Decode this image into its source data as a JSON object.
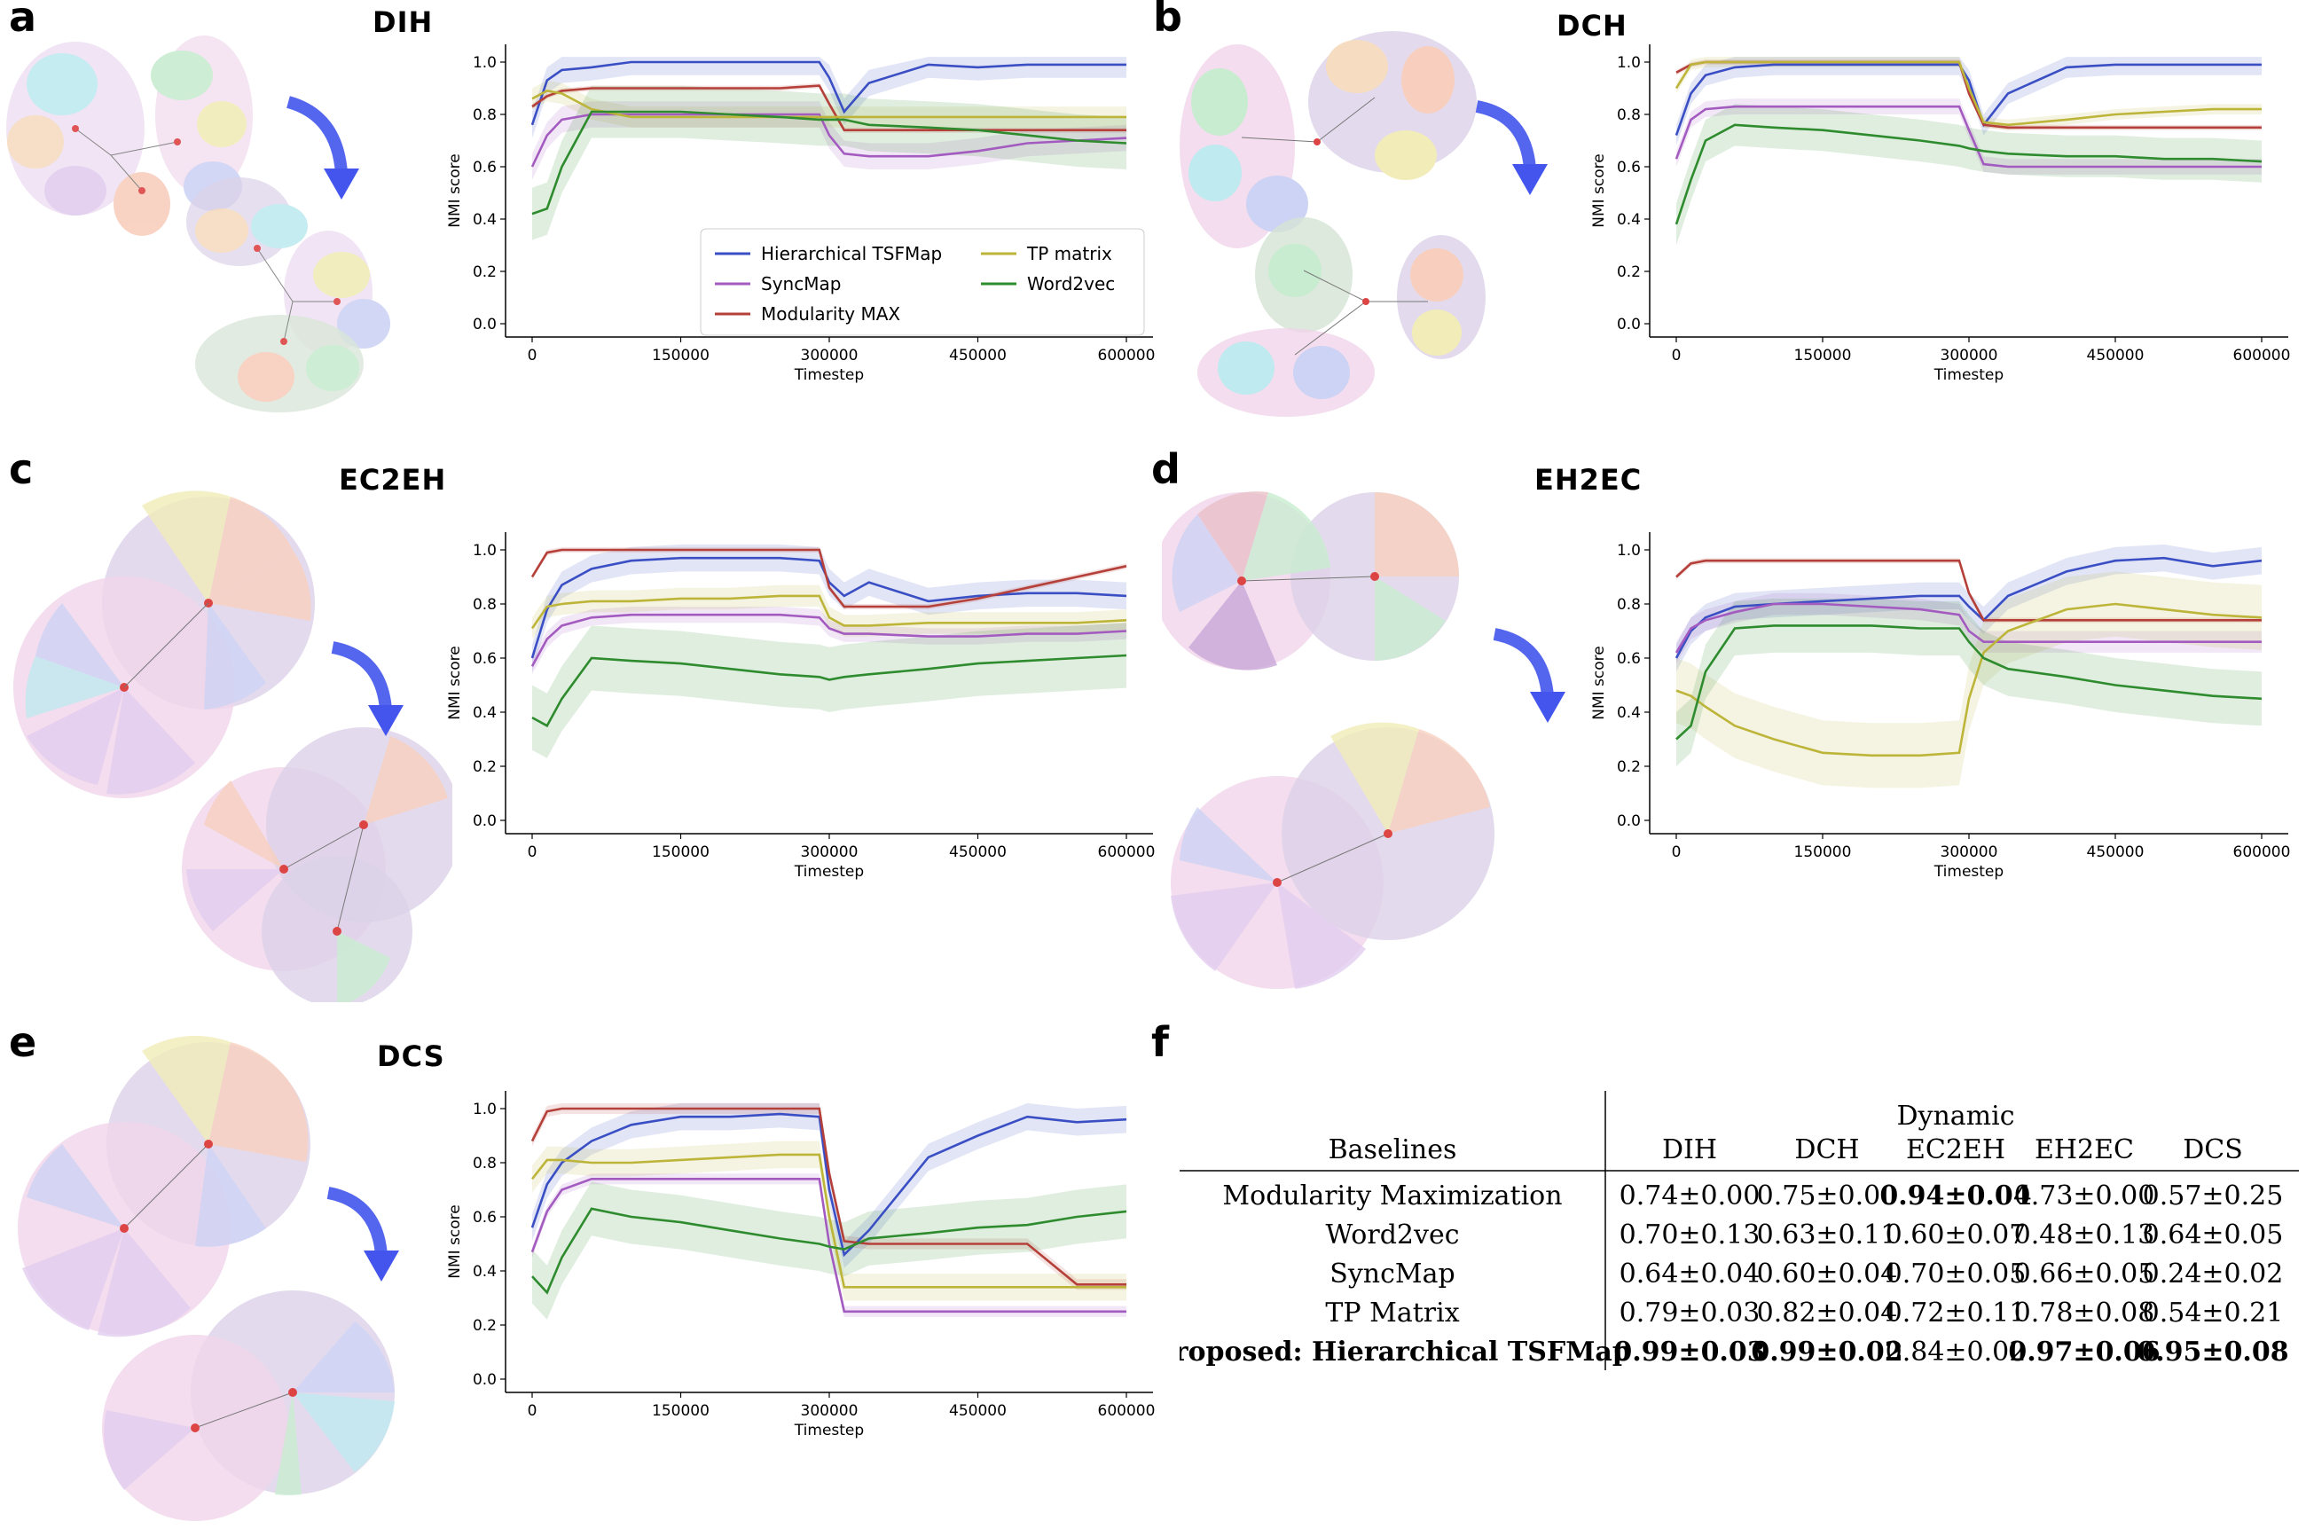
{
  "panels": [
    {
      "letter": "a",
      "title": "DIH",
      "ticks": [
        "0",
        "150000",
        "300000",
        "450000",
        "600000"
      ],
      "yticks": [
        "0.0",
        "0.2",
        "0.4",
        "0.6",
        "0.8",
        "1.0"
      ],
      "xlabel": "Timestep",
      "ylabel": "NMI score"
    },
    {
      "letter": "b",
      "title": "DCH",
      "ticks": [
        "0",
        "150000",
        "300000",
        "450000",
        "600000"
      ],
      "yticks": [
        "0.0",
        "0.2",
        "0.4",
        "0.6",
        "0.8",
        "1.0"
      ],
      "xlabel": "Timestep",
      "ylabel": "NMI score"
    },
    {
      "letter": "c",
      "title": "EC2EH",
      "ticks": [
        "0",
        "150000",
        "300000",
        "450000",
        "600000"
      ],
      "yticks": [
        "0.0",
        "0.2",
        "0.4",
        "0.6",
        "0.8",
        "1.0"
      ],
      "xlabel": "Timestep",
      "ylabel": "NMI score"
    },
    {
      "letter": "d",
      "title": "EH2EC",
      "ticks": [
        "0",
        "150000",
        "300000",
        "450000",
        "600000"
      ],
      "yticks": [
        "0.0",
        "0.2",
        "0.4",
        "0.6",
        "0.8",
        "1.0"
      ],
      "xlabel": "Timestep",
      "ylabel": "NMI score"
    },
    {
      "letter": "e",
      "title": "DCS",
      "ticks": [
        "0",
        "150000",
        "300000",
        "450000",
        "600000"
      ],
      "yticks": [
        "0.0",
        "0.2",
        "0.4",
        "0.6",
        "0.8",
        "1.0"
      ],
      "xlabel": "Timestep",
      "ylabel": "NMI score"
    }
  ],
  "legend": [
    {
      "name": "Hierarchical TSFMap",
      "color": "#3b4fc4"
    },
    {
      "name": "SyncMap",
      "color": "#a35bc0"
    },
    {
      "name": "Modularity MAX",
      "color": "#b5403a"
    },
    {
      "name": "TP matrix",
      "color": "#bdb53a"
    },
    {
      "name": "Word2vec",
      "color": "#2e8b2e"
    }
  ],
  "table": {
    "letter": "f",
    "group_header": "Dynamic",
    "row_header": "Baselines",
    "columns": [
      "DIH",
      "DCH",
      "EC2EH",
      "EH2EC",
      "DCS"
    ],
    "rows": [
      {
        "name": "Modularity Maximization",
        "values": [
          "0.74±0.00",
          "0.75±0.00",
          "0.94±0.04",
          "0.73±0.00",
          "0.57±0.25"
        ],
        "bold": [
          false,
          false,
          true,
          false,
          false
        ]
      },
      {
        "name": "Word2vec",
        "values": [
          "0.70±0.13",
          "0.63±0.11",
          "0.60±0.07",
          "0.48±0.13",
          "0.64±0.05"
        ],
        "bold": [
          false,
          false,
          false,
          false,
          false
        ]
      },
      {
        "name": "SyncMap",
        "values": [
          "0.64±0.04",
          "0.60±0.04",
          "0.70±0.05",
          "0.66±0.05",
          "0.24±0.02"
        ],
        "bold": [
          false,
          false,
          false,
          false,
          false
        ]
      },
      {
        "name": "TP Matrix",
        "values": [
          "0.79±0.03",
          "0.82±0.04",
          "0.72±0.11",
          "0.78±0.08",
          "0.54±0.21"
        ],
        "bold": [
          false,
          false,
          false,
          false,
          false
        ]
      },
      {
        "name": "Proposed: Hierarchical TSFMap",
        "values": [
          "0.99±0.03",
          "0.99±0.02",
          "0.84±0.02",
          "0.97±0.06",
          "0.95±0.08"
        ],
        "bold": [
          true,
          true,
          false,
          true,
          true
        ],
        "name_bold": true
      }
    ]
  },
  "chart_data": [
    {
      "type": "line",
      "title": "DIH",
      "xlabel": "Timestep",
      "ylabel": "NMI score",
      "xlim": [
        0,
        600000
      ],
      "ylim": [
        0,
        1.05
      ],
      "x": [
        0,
        15000,
        30000,
        60000,
        100000,
        150000,
        200000,
        250000,
        290000,
        300000,
        315000,
        340000,
        400000,
        450000,
        500000,
        550000,
        600000
      ],
      "series": [
        {
          "name": "Hierarchical TSFMap",
          "values": [
            0.76,
            0.93,
            0.97,
            0.98,
            1.0,
            1.0,
            1.0,
            1.0,
            1.0,
            0.94,
            0.81,
            0.92,
            0.99,
            0.98,
            0.99,
            0.99,
            0.99
          ],
          "band": 0.05
        },
        {
          "name": "SyncMap",
          "values": [
            0.6,
            0.72,
            0.78,
            0.8,
            0.8,
            0.8,
            0.8,
            0.8,
            0.8,
            0.72,
            0.65,
            0.64,
            0.64,
            0.66,
            0.69,
            0.7,
            0.71
          ],
          "band": 0.05
        },
        {
          "name": "Modularity MAX",
          "values": [
            0.83,
            0.87,
            0.89,
            0.9,
            0.9,
            0.9,
            0.9,
            0.9,
            0.91,
            0.84,
            0.74,
            0.74,
            0.74,
            0.74,
            0.74,
            0.74,
            0.74
          ],
          "band": 0.01
        },
        {
          "name": "TP matrix",
          "values": [
            0.86,
            0.89,
            0.88,
            0.82,
            0.79,
            0.79,
            0.79,
            0.79,
            0.79,
            0.79,
            0.79,
            0.79,
            0.79,
            0.79,
            0.79,
            0.79,
            0.79
          ],
          "band": 0.04
        },
        {
          "name": "Word2vec",
          "values": [
            0.42,
            0.44,
            0.6,
            0.81,
            0.81,
            0.81,
            0.8,
            0.79,
            0.78,
            0.78,
            0.78,
            0.76,
            0.75,
            0.74,
            0.72,
            0.7,
            0.69
          ],
          "band": 0.1
        }
      ]
    },
    {
      "type": "line",
      "title": "DCH",
      "xlabel": "Timestep",
      "ylabel": "NMI score",
      "xlim": [
        0,
        600000
      ],
      "ylim": [
        0,
        1.05
      ],
      "x": [
        0,
        15000,
        30000,
        60000,
        100000,
        150000,
        200000,
        250000,
        290000,
        300000,
        315000,
        340000,
        400000,
        450000,
        500000,
        550000,
        600000
      ],
      "series": [
        {
          "name": "Hierarchical TSFMap",
          "values": [
            0.72,
            0.88,
            0.95,
            0.98,
            0.99,
            0.99,
            0.99,
            0.99,
            0.99,
            0.93,
            0.76,
            0.88,
            0.98,
            0.99,
            0.99,
            0.99,
            0.99
          ],
          "band": 0.04
        },
        {
          "name": "SyncMap",
          "values": [
            0.63,
            0.78,
            0.82,
            0.83,
            0.83,
            0.83,
            0.83,
            0.83,
            0.83,
            0.74,
            0.61,
            0.6,
            0.6,
            0.6,
            0.6,
            0.6,
            0.6
          ],
          "band": 0.03
        },
        {
          "name": "Modularity MAX",
          "values": [
            0.96,
            0.99,
            1.0,
            1.0,
            1.0,
            1.0,
            1.0,
            1.0,
            1.0,
            0.88,
            0.76,
            0.75,
            0.75,
            0.75,
            0.75,
            0.75,
            0.75
          ],
          "band": 0.01
        },
        {
          "name": "TP matrix",
          "values": [
            0.9,
            0.99,
            1.0,
            1.0,
            1.0,
            1.0,
            1.0,
            1.0,
            1.0,
            0.9,
            0.77,
            0.76,
            0.78,
            0.8,
            0.81,
            0.82,
            0.82
          ],
          "band": 0.02
        },
        {
          "name": "Word2vec",
          "values": [
            0.38,
            0.55,
            0.7,
            0.76,
            0.75,
            0.74,
            0.72,
            0.7,
            0.68,
            0.67,
            0.66,
            0.65,
            0.64,
            0.64,
            0.63,
            0.63,
            0.62
          ],
          "band": 0.08
        }
      ]
    },
    {
      "type": "line",
      "title": "EC2EH",
      "xlabel": "Timestep",
      "ylabel": "NMI score",
      "xlim": [
        0,
        600000
      ],
      "ylim": [
        0,
        1.05
      ],
      "x": [
        0,
        15000,
        30000,
        60000,
        100000,
        150000,
        200000,
        250000,
        290000,
        300000,
        315000,
        340000,
        400000,
        450000,
        500000,
        550000,
        600000
      ],
      "series": [
        {
          "name": "Hierarchical TSFMap",
          "values": [
            0.6,
            0.78,
            0.87,
            0.93,
            0.96,
            0.97,
            0.97,
            0.97,
            0.96,
            0.88,
            0.83,
            0.88,
            0.81,
            0.83,
            0.84,
            0.84,
            0.83
          ],
          "band": 0.05
        },
        {
          "name": "SyncMap",
          "values": [
            0.57,
            0.67,
            0.72,
            0.75,
            0.76,
            0.76,
            0.76,
            0.76,
            0.75,
            0.71,
            0.69,
            0.69,
            0.68,
            0.68,
            0.69,
            0.69,
            0.7
          ],
          "band": 0.03
        },
        {
          "name": "Modularity MAX",
          "values": [
            0.9,
            0.99,
            1.0,
            1.0,
            1.0,
            1.0,
            1.0,
            1.0,
            1.0,
            0.86,
            0.79,
            0.79,
            0.79,
            0.82,
            0.86,
            0.9,
            0.94
          ],
          "band": 0.01
        },
        {
          "name": "TP matrix",
          "values": [
            0.71,
            0.79,
            0.8,
            0.81,
            0.81,
            0.82,
            0.82,
            0.83,
            0.83,
            0.75,
            0.72,
            0.72,
            0.73,
            0.73,
            0.73,
            0.73,
            0.74
          ],
          "band": 0.04
        },
        {
          "name": "Word2vec",
          "values": [
            0.38,
            0.35,
            0.45,
            0.6,
            0.59,
            0.58,
            0.56,
            0.54,
            0.53,
            0.52,
            0.53,
            0.54,
            0.56,
            0.58,
            0.59,
            0.6,
            0.61
          ],
          "band": 0.12
        }
      ]
    },
    {
      "type": "line",
      "title": "EH2EC",
      "xlabel": "Timestep",
      "ylabel": "NMI score",
      "xlim": [
        0,
        600000
      ],
      "ylim": [
        0,
        1.05
      ],
      "x": [
        0,
        15000,
        30000,
        60000,
        100000,
        150000,
        200000,
        250000,
        290000,
        300000,
        315000,
        340000,
        400000,
        450000,
        500000,
        550000,
        600000
      ],
      "series": [
        {
          "name": "Hierarchical TSFMap",
          "values": [
            0.6,
            0.7,
            0.75,
            0.79,
            0.8,
            0.81,
            0.82,
            0.83,
            0.83,
            0.79,
            0.74,
            0.83,
            0.92,
            0.96,
            0.97,
            0.94,
            0.96
          ],
          "band": 0.05
        },
        {
          "name": "SyncMap",
          "values": [
            0.62,
            0.71,
            0.74,
            0.77,
            0.8,
            0.8,
            0.79,
            0.78,
            0.76,
            0.7,
            0.66,
            0.66,
            0.66,
            0.66,
            0.66,
            0.66,
            0.66
          ],
          "band": 0.04
        },
        {
          "name": "Modularity MAX",
          "values": [
            0.9,
            0.95,
            0.96,
            0.96,
            0.96,
            0.96,
            0.96,
            0.96,
            0.96,
            0.84,
            0.74,
            0.74,
            0.74,
            0.74,
            0.74,
            0.74,
            0.74
          ],
          "band": 0.01
        },
        {
          "name": "TP matrix",
          "values": [
            0.48,
            0.46,
            0.42,
            0.35,
            0.3,
            0.25,
            0.24,
            0.24,
            0.25,
            0.45,
            0.62,
            0.7,
            0.78,
            0.8,
            0.78,
            0.76,
            0.75
          ],
          "band": 0.12
        },
        {
          "name": "Word2vec",
          "values": [
            0.3,
            0.35,
            0.55,
            0.71,
            0.72,
            0.72,
            0.72,
            0.71,
            0.71,
            0.66,
            0.6,
            0.56,
            0.53,
            0.5,
            0.48,
            0.46,
            0.45
          ],
          "band": 0.1
        }
      ]
    },
    {
      "type": "line",
      "title": "DCS",
      "xlabel": "Timestep",
      "ylabel": "NMI score",
      "xlim": [
        0,
        600000
      ],
      "ylim": [
        0,
        1.05
      ],
      "x": [
        0,
        15000,
        30000,
        60000,
        100000,
        150000,
        200000,
        250000,
        290000,
        300000,
        315000,
        340000,
        400000,
        450000,
        500000,
        550000,
        600000
      ],
      "series": [
        {
          "name": "Hierarchical TSFMap",
          "values": [
            0.56,
            0.72,
            0.8,
            0.88,
            0.94,
            0.97,
            0.97,
            0.98,
            0.97,
            0.7,
            0.46,
            0.55,
            0.82,
            0.9,
            0.97,
            0.95,
            0.96
          ],
          "band": 0.05
        },
        {
          "name": "SyncMap",
          "values": [
            0.47,
            0.62,
            0.7,
            0.74,
            0.74,
            0.74,
            0.74,
            0.74,
            0.74,
            0.5,
            0.25,
            0.25,
            0.25,
            0.25,
            0.25,
            0.25,
            0.25
          ],
          "band": 0.02
        },
        {
          "name": "Modularity MAX",
          "values": [
            0.88,
            0.99,
            1.0,
            1.0,
            1.0,
            1.0,
            1.0,
            1.0,
            1.0,
            0.76,
            0.51,
            0.5,
            0.5,
            0.5,
            0.5,
            0.35,
            0.35
          ],
          "band": 0.02
        },
        {
          "name": "TP matrix",
          "values": [
            0.74,
            0.81,
            0.81,
            0.8,
            0.8,
            0.81,
            0.82,
            0.83,
            0.83,
            0.6,
            0.34,
            0.34,
            0.34,
            0.34,
            0.34,
            0.34,
            0.34
          ],
          "band": 0.05
        },
        {
          "name": "Word2vec",
          "values": [
            0.38,
            0.32,
            0.45,
            0.63,
            0.6,
            0.58,
            0.55,
            0.52,
            0.5,
            0.49,
            0.48,
            0.52,
            0.54,
            0.56,
            0.57,
            0.6,
            0.62
          ],
          "band": 0.1
        }
      ]
    }
  ]
}
